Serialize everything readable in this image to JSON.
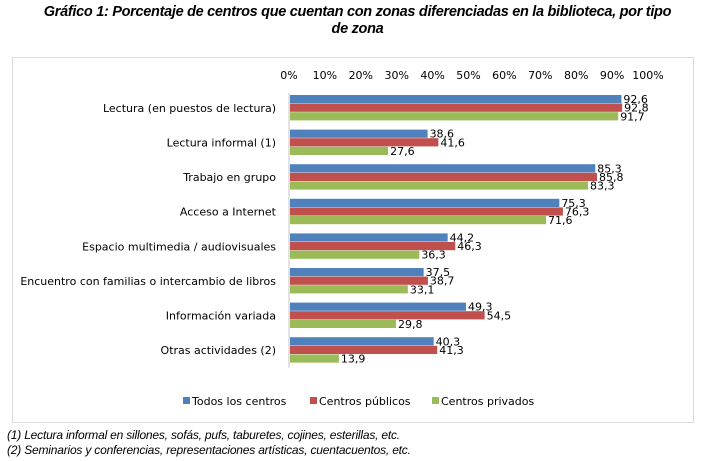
{
  "title": "Gráfico 1: Porcentaje de centros que cuentan con zonas diferenciadas en la biblioteca, por tipo de zona",
  "title_line1": "Gráfico 1: Porcentaje de centros que cuentan con zonas diferenciadas en la biblioteca, por tipo",
  "title_line2": "de zona",
  "footnotes": [
    "(1) Lectura informal en sillones, sofás, pufs, taburetes, cojines, esterillas, etc.",
    "(2) Seminarios y conferencias, representaciones artísticas, cuentacuentos, etc."
  ],
  "chart_data": {
    "type": "bar",
    "orientation": "horizontal",
    "title": "Gráfico 1: Porcentaje de centros que cuentan con zonas diferenciadas en la biblioteca, por tipo de zona",
    "xlabel": "",
    "ylabel": "",
    "xlim": [
      0,
      100
    ],
    "x_ticks": [
      "0%",
      "10%",
      "20%",
      "30%",
      "40%",
      "50%",
      "60%",
      "70%",
      "80%",
      "90%",
      "100%"
    ],
    "x_axis_position": "top",
    "grid": false,
    "legend_position": "bottom",
    "categories": [
      "Lectura (en puestos de lectura)",
      "Lectura informal (1)",
      "Trabajo en grupo",
      "Acceso a Internet",
      "Espacio multimedia / audiovisuales",
      "Encuentro con familias o intercambio de libros",
      "Información variada",
      "Otras actividades (2)"
    ],
    "series": [
      {
        "name": "Todos los centros",
        "color": "#4f81bd",
        "values": [
          92.6,
          38.6,
          85.3,
          75.3,
          44.2,
          37.5,
          49.3,
          40.3
        ],
        "labels": [
          "92,6",
          "38,6",
          "85,3",
          "75,3",
          "44,2",
          "37,5",
          "49,3",
          "40,3"
        ]
      },
      {
        "name": "Centros públicos",
        "color": "#c0504d",
        "values": [
          92.8,
          41.6,
          85.8,
          76.3,
          46.3,
          38.7,
          54.5,
          41.3
        ],
        "labels": [
          "92,8",
          "41,6",
          "85,8",
          "76,3",
          "46,3",
          "38,7",
          "54,5",
          "41,3"
        ]
      },
      {
        "name": "Centros privados",
        "color": "#9bbb59",
        "values": [
          91.7,
          27.6,
          83.3,
          71.6,
          36.3,
          33.1,
          29.8,
          13.9
        ],
        "labels": [
          "91,7",
          "27,6",
          "83,3",
          "71,6",
          "36,3",
          "33,1",
          "29,8",
          "13,9"
        ]
      }
    ]
  }
}
